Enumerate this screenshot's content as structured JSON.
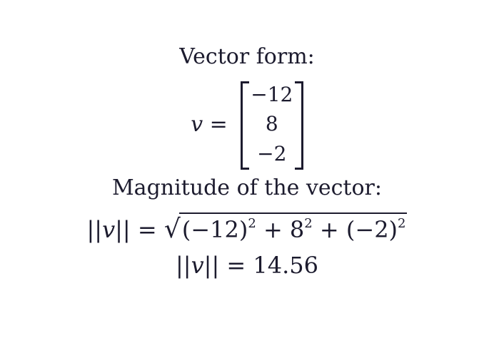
{
  "vector_form_heading": "Vector form:",
  "vector": {
    "lhs": "v =",
    "entries": [
      "−12",
      "8",
      "−2"
    ]
  },
  "magnitude_heading": "Magnitude of the vector:",
  "magnitude_formula": {
    "lhs": "||v|| =",
    "sqrt_sign": "√",
    "term1": "(−12)",
    "exp1": "2",
    "op1": " + 8",
    "exp2": "2",
    "op2": " + (−2)",
    "exp3": "2"
  },
  "magnitude_result": {
    "lhs": "||v|| =",
    "value": "14.56"
  }
}
